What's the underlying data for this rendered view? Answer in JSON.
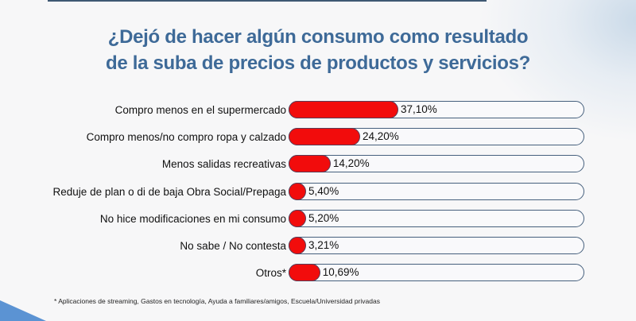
{
  "chart_data": {
    "type": "bar",
    "orientation": "horizontal",
    "title": "¿Dejó de hacer algún consumo como resultado de la suba de precios de productos y servicios?",
    "title_lines": [
      "¿Dejó de hacer algún consumo como resultado",
      "de la suba de precios de productos y servicios?"
    ],
    "categories": [
      "Compro menos en el supermercado",
      "Compro menos/no compro ropa y calzado",
      "Menos salidas recreativas",
      "Reduje de plan o di de baja Obra Social/Prepaga",
      "No hice modificaciones en mi consumo",
      "No sabe / No contesta",
      "Otros*"
    ],
    "values": [
      37.1,
      24.2,
      14.2,
      5.4,
      5.2,
      3.21,
      10.69
    ],
    "value_labels": [
      "37,10%",
      "24,20%",
      "14,20%",
      "5,40%",
      "5,20%",
      "3,21%",
      "10,69%"
    ],
    "xlim": [
      0,
      100
    ],
    "xlabel": "",
    "ylabel": "",
    "grid": false,
    "legend": "none",
    "bar_color": "#f20c0c",
    "track_color": "#f9f9fb",
    "footnote": "* Aplicaciones de streaming, Gastos en tecnología, Ayuda a familiares/amigos, Escuela/Universidad privadas"
  },
  "colors": {
    "title": "#3e6a98",
    "accent_corner": "#5b93d3",
    "rule": "#3f5873"
  }
}
